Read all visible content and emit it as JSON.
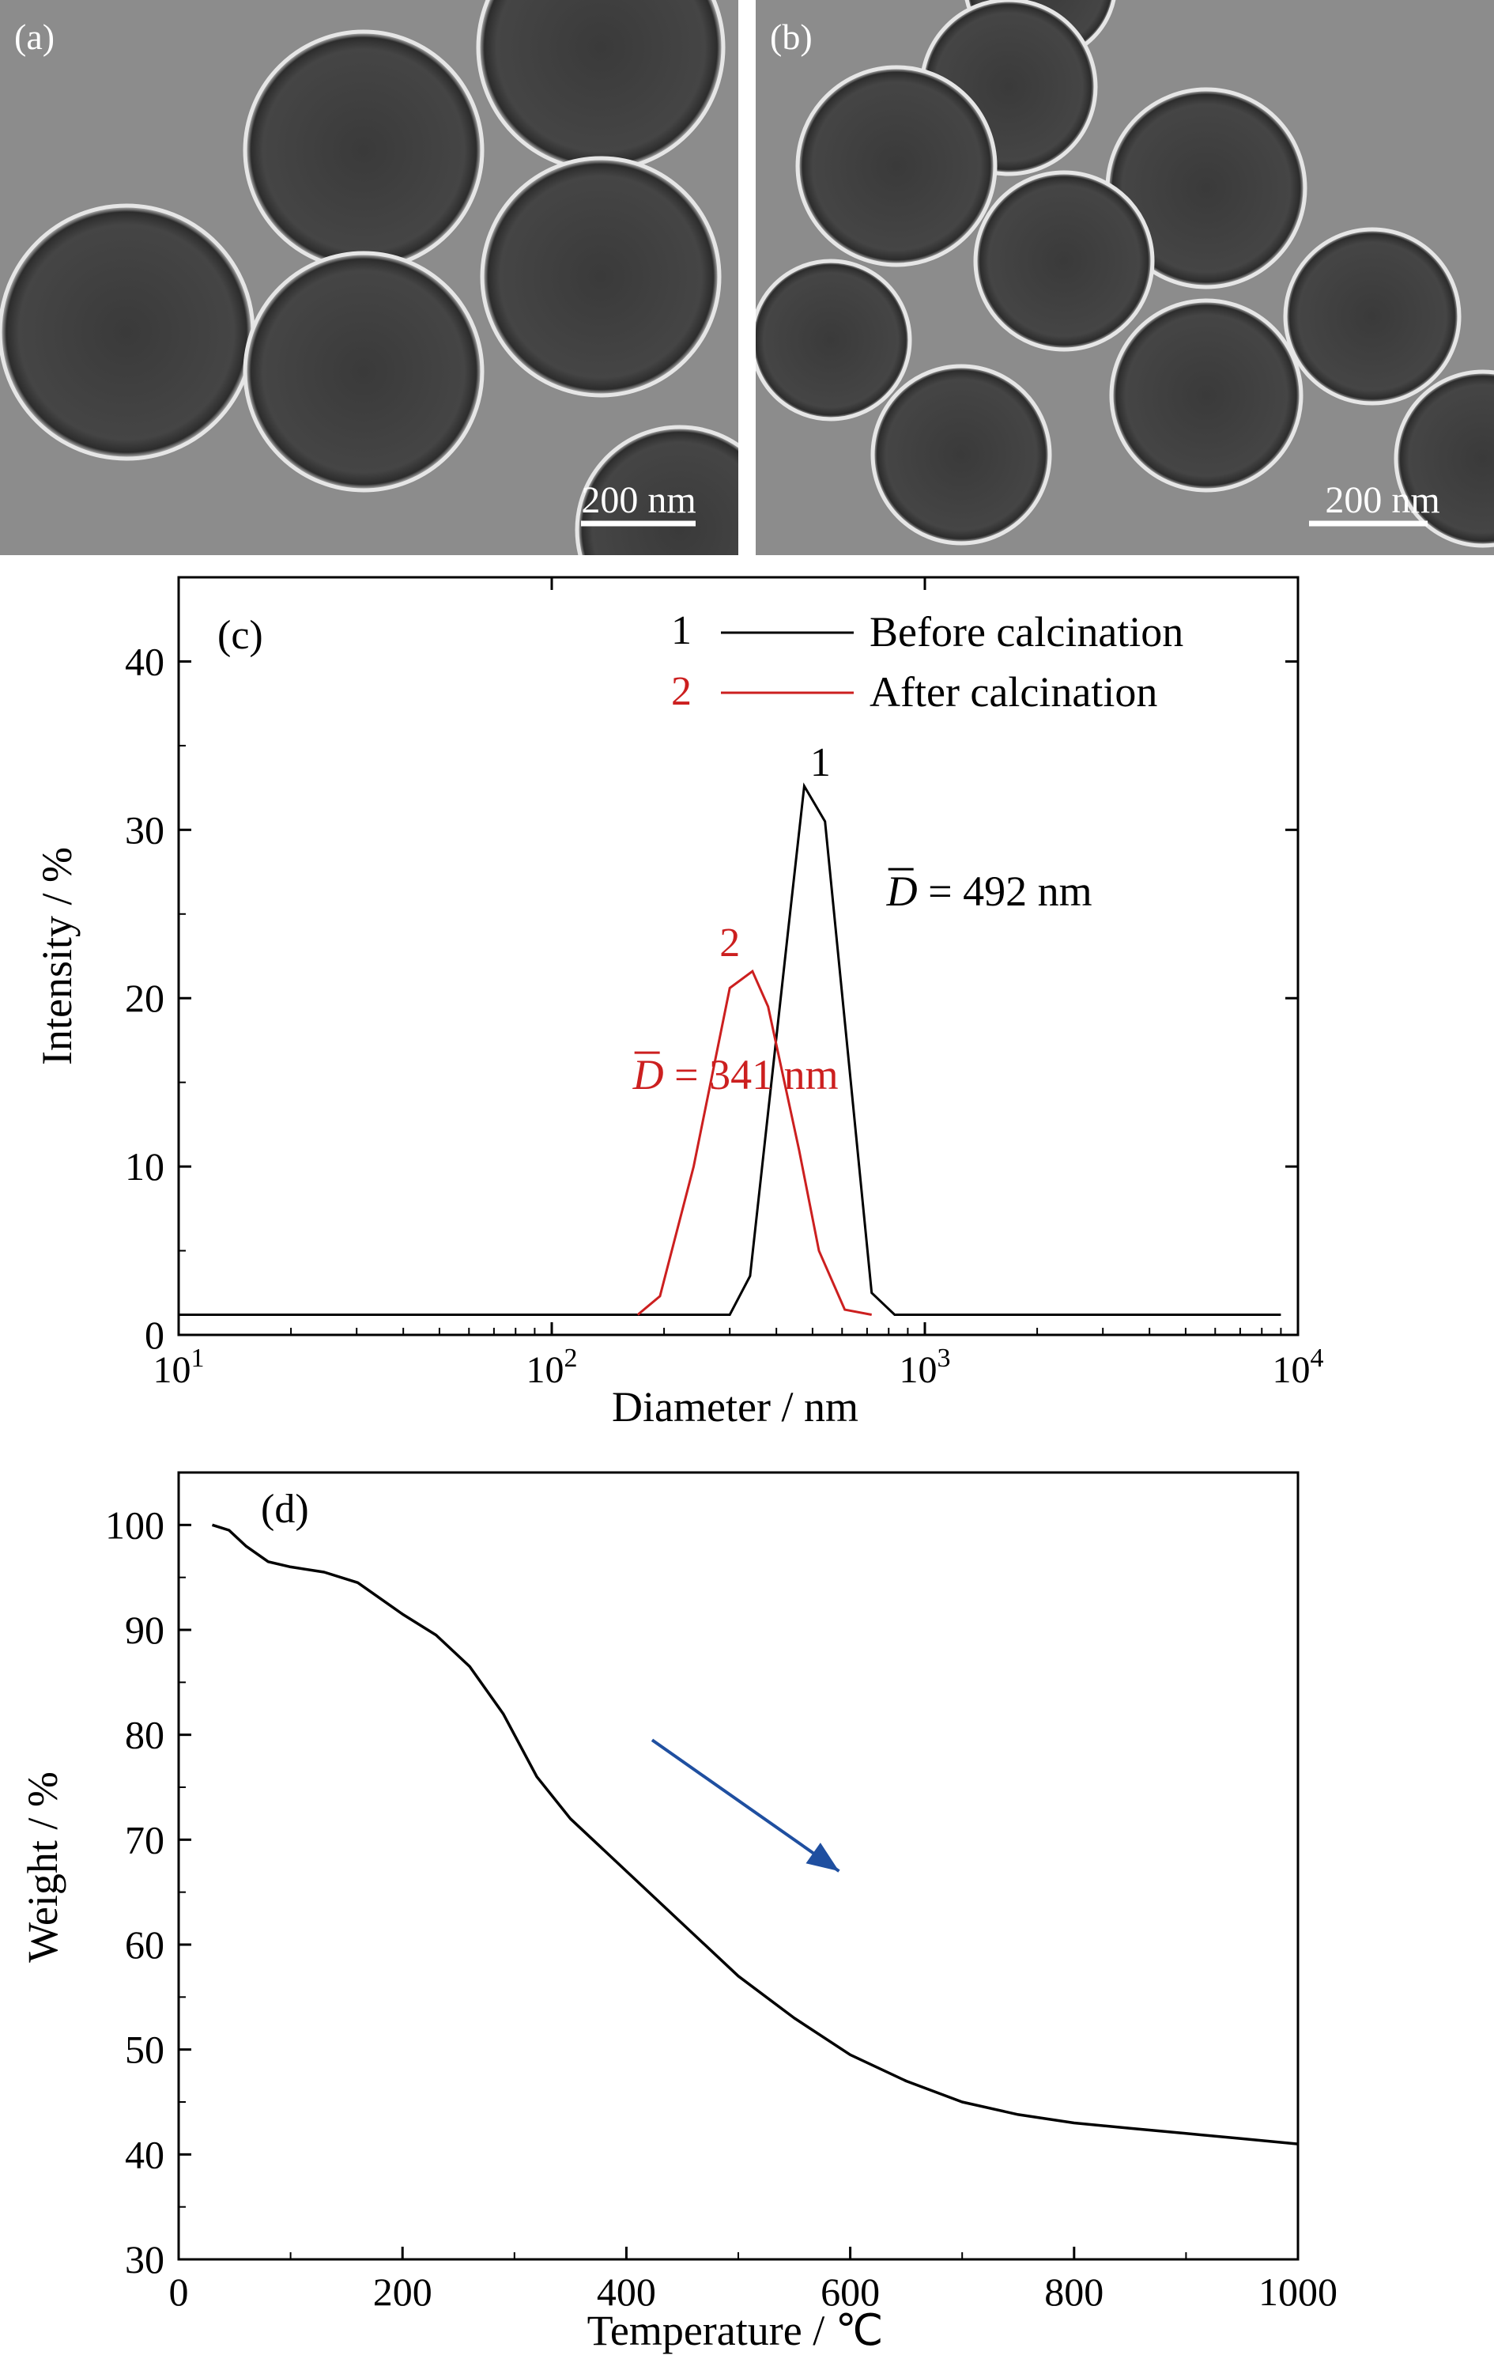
{
  "micrographs": [
    {
      "panel_label": "(a)",
      "scale_text": "200 nm"
    },
    {
      "panel_label": "(b)",
      "scale_text": "200 nm"
    }
  ],
  "chart_data": [
    {
      "type": "line",
      "panel_label": "(c)",
      "xlabel": "Diameter / nm",
      "ylabel": "Intensity / %",
      "xscale": "log",
      "xlim": [
        10,
        10000
      ],
      "ylim": [
        0,
        45
      ],
      "x_ticks": [
        {
          "base": "10",
          "exp": "1",
          "value": 10
        },
        {
          "base": "10",
          "exp": "2",
          "value": 100
        },
        {
          "base": "10",
          "exp": "3",
          "value": 1000
        },
        {
          "base": "10",
          "exp": "4",
          "value": 10000
        }
      ],
      "y_ticks": [
        "0",
        "10",
        "20",
        "30",
        "40"
      ],
      "legend_position": "top-right",
      "series": [
        {
          "name": "Before calcination",
          "legend_number": "1",
          "color": "#000000",
          "x": [
            10,
            300,
            340,
            430,
            475,
            540,
            720,
            830,
            9000
          ],
          "y": [
            1.2,
            1.2,
            3.5,
            24,
            32.6,
            30.5,
            2.5,
            1.2,
            1.2
          ]
        },
        {
          "name": "After calcination",
          "legend_number": "2",
          "color": "#cc1f1f",
          "x": [
            170,
            195,
            240,
            300,
            345,
            380,
            460,
            520,
            610,
            720
          ],
          "y": [
            1.2,
            2.3,
            10,
            20.6,
            21.6,
            19.5,
            11,
            5,
            1.5,
            1.2
          ]
        }
      ],
      "annotations": [
        {
          "text": "1",
          "x": 525,
          "y": 33.2,
          "color": "#000000"
        },
        {
          "text": "2",
          "x": 300,
          "y": 22.5,
          "color": "#cc1f1f"
        },
        {
          "symbol": "D",
          "rest": " = 492 nm",
          "x": 790,
          "y": 25.5,
          "color": "#000000"
        },
        {
          "symbol": "D",
          "rest": " = 341 nm",
          "x": 165,
          "y": 14.6,
          "color": "#cc1f1f"
        }
      ]
    },
    {
      "type": "line",
      "panel_label": "(d)",
      "xlabel": "Temperature / ℃",
      "ylabel": "Weight / %",
      "xlim": [
        0,
        1000
      ],
      "ylim": [
        30,
        105
      ],
      "x_ticks": [
        "0",
        "200",
        "400",
        "600",
        "800",
        "1000"
      ],
      "y_ticks": [
        "30",
        "40",
        "50",
        "60",
        "70",
        "80",
        "90",
        "100"
      ],
      "series": [
        {
          "color": "#000000",
          "x": [
            30,
            45,
            60,
            80,
            100,
            130,
            160,
            200,
            230,
            260,
            290,
            320,
            350,
            400,
            450,
            500,
            550,
            600,
            650,
            700,
            750,
            800,
            850,
            900,
            950,
            1000
          ],
          "y": [
            100,
            99.5,
            98,
            96.5,
            96,
            95.5,
            94.5,
            91.5,
            89.5,
            86.5,
            82,
            76,
            72,
            67,
            62,
            57,
            53,
            49.5,
            47,
            45,
            43.8,
            43,
            42.5,
            42,
            41.5,
            41
          ]
        }
      ],
      "arrow": {
        "from": [
          423,
          79.5
        ],
        "to": [
          590,
          67
        ],
        "color": "#1f4fa0"
      }
    }
  ]
}
